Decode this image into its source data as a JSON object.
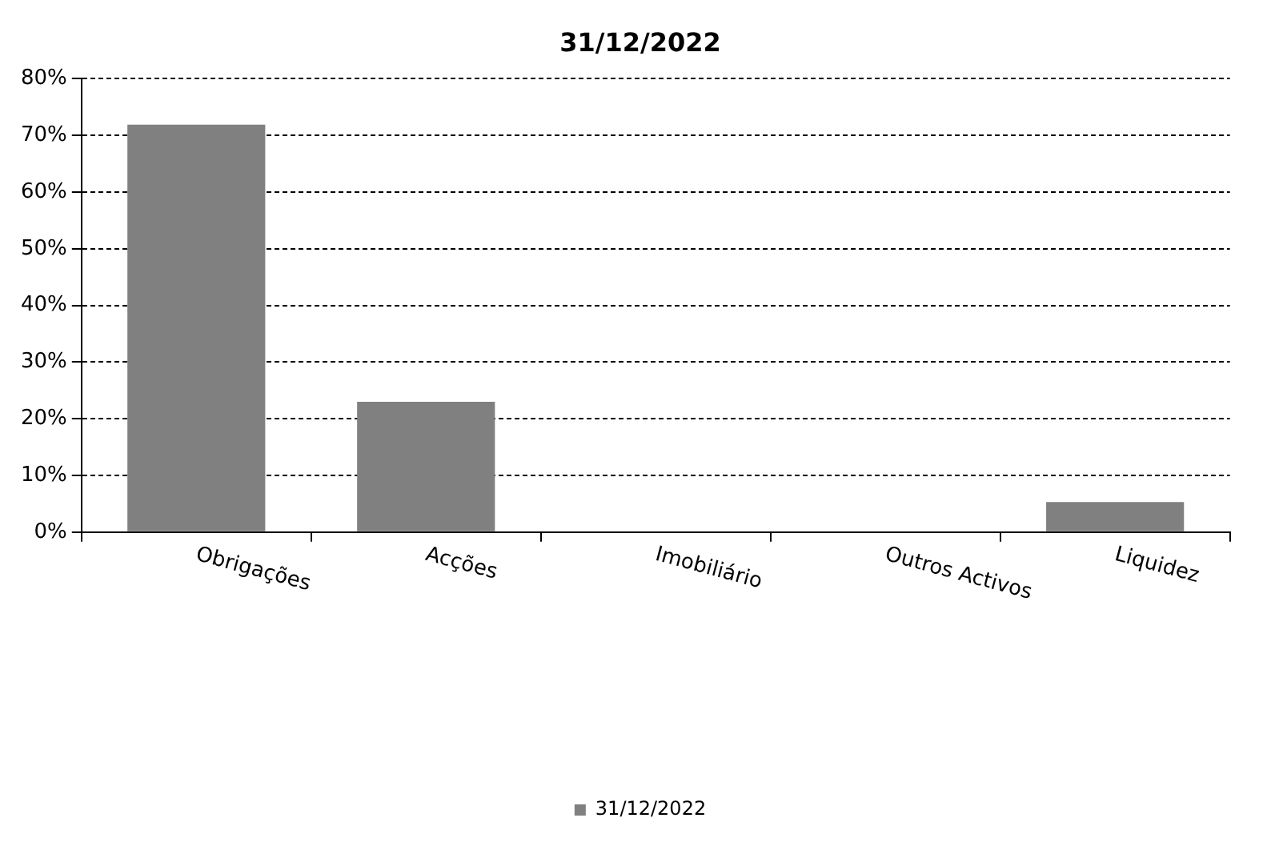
{
  "chart_data": {
    "type": "bar",
    "title": "31/12/2022",
    "categories": [
      "Obrigações",
      "Acções",
      "Imobiliário",
      "Outros Activos",
      "Liquidez"
    ],
    "series": [
      {
        "name": "31/12/2022",
        "color": "#808080",
        "values": [
          71.9,
          23,
          0,
          0,
          5.3
        ]
      }
    ],
    "ylim": [
      0,
      80
    ],
    "yticks": [
      {
        "value": 0,
        "label": "0%"
      },
      {
        "value": 10,
        "label": "10%"
      },
      {
        "value": 20,
        "label": "20%"
      },
      {
        "value": 30,
        "label": "30%"
      },
      {
        "value": 40,
        "label": "40%"
      },
      {
        "value": 50,
        "label": "50%"
      },
      {
        "value": 60,
        "label": "60%"
      },
      {
        "value": 70,
        "label": "70%"
      },
      {
        "value": 80,
        "label": "80%"
      }
    ],
    "grid": "y",
    "legend": "bottom"
  }
}
